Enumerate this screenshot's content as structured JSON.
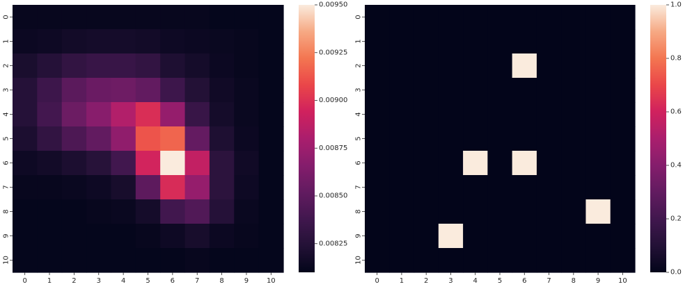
{
  "chart_data": [
    {
      "type": "heatmap",
      "x_ticks": [
        "0",
        "1",
        "2",
        "3",
        "4",
        "5",
        "6",
        "7",
        "8",
        "9",
        "10"
      ],
      "y_ticks": [
        "0",
        "1",
        "2",
        "3",
        "4",
        "5",
        "6",
        "7",
        "8",
        "9",
        "10"
      ],
      "colormap": "rocket",
      "vmin": 0.0081,
      "vmax": 0.0095,
      "colorbar_ticks": [
        "0.00825",
        "0.00850",
        "0.00875",
        "0.00900",
        "0.00925",
        "0.00950"
      ],
      "colorbar_tick_values": [
        0.00825,
        0.0085,
        0.00875,
        0.009,
        0.00925,
        0.0095
      ],
      "values": [
        [
          0.00812,
          0.00812,
          0.00812,
          0.00812,
          0.00812,
          0.00812,
          0.00812,
          0.00812,
          0.00811,
          0.00811,
          0.00811
        ],
        [
          0.00814,
          0.00815,
          0.00817,
          0.00818,
          0.00818,
          0.00817,
          0.00815,
          0.00814,
          0.00813,
          0.00812,
          0.00811
        ],
        [
          0.0082,
          0.00825,
          0.00831,
          0.00834,
          0.00834,
          0.00831,
          0.00822,
          0.00818,
          0.00814,
          0.00812,
          0.00811
        ],
        [
          0.00825,
          0.00836,
          0.00849,
          0.00855,
          0.00857,
          0.00852,
          0.00836,
          0.00824,
          0.00816,
          0.00813,
          0.00811
        ],
        [
          0.00825,
          0.00839,
          0.00856,
          0.00867,
          0.00883,
          0.00899,
          0.00872,
          0.00834,
          0.00818,
          0.00813,
          0.00811
        ],
        [
          0.00821,
          0.00831,
          0.00843,
          0.00852,
          0.0087,
          0.00912,
          0.00917,
          0.00853,
          0.00822,
          0.00814,
          0.00811
        ],
        [
          0.00815,
          0.00817,
          0.00821,
          0.00826,
          0.00838,
          0.00895,
          0.0095,
          0.00889,
          0.00828,
          0.00816,
          0.00811
        ],
        [
          0.00812,
          0.00812,
          0.00813,
          0.00815,
          0.00819,
          0.0085,
          0.00898,
          0.00872,
          0.00828,
          0.00815,
          0.00811
        ],
        [
          0.00811,
          0.00811,
          0.00811,
          0.00812,
          0.00813,
          0.00818,
          0.00838,
          0.00845,
          0.00825,
          0.00813,
          0.00811
        ],
        [
          0.00811,
          0.00811,
          0.00811,
          0.00811,
          0.00811,
          0.00812,
          0.00815,
          0.00819,
          0.00814,
          0.00812,
          0.00811
        ],
        [
          0.00811,
          0.00811,
          0.00811,
          0.00811,
          0.00811,
          0.00811,
          0.00811,
          0.00812,
          0.00811,
          0.00811,
          0.00811
        ]
      ]
    },
    {
      "type": "heatmap",
      "x_ticks": [
        "0",
        "1",
        "2",
        "3",
        "4",
        "5",
        "6",
        "7",
        "8",
        "9",
        "10"
      ],
      "y_ticks": [
        "0",
        "1",
        "2",
        "3",
        "4",
        "5",
        "6",
        "7",
        "8",
        "9",
        "10"
      ],
      "colormap": "rocket",
      "vmin": 0.0,
      "vmax": 1.0,
      "colorbar_ticks": [
        "0.0",
        "0.2",
        "0.4",
        "0.6",
        "0.8",
        "1.0"
      ],
      "colorbar_tick_values": [
        0.0,
        0.2,
        0.4,
        0.6,
        0.8,
        1.0
      ],
      "values": [
        [
          0,
          0,
          0,
          0,
          0,
          0,
          0,
          0,
          0,
          0,
          0
        ],
        [
          0,
          0,
          0,
          0,
          0,
          0,
          0,
          0,
          0,
          0,
          0
        ],
        [
          0,
          0,
          0,
          0,
          0,
          0,
          1,
          0,
          0,
          0,
          0
        ],
        [
          0,
          0,
          0,
          0,
          0,
          0,
          0,
          0,
          0,
          0,
          0
        ],
        [
          0,
          0,
          0,
          0,
          0,
          0,
          0,
          0,
          0,
          0,
          0
        ],
        [
          0,
          0,
          0,
          0,
          0,
          0,
          0,
          0,
          0,
          0,
          0
        ],
        [
          0,
          0,
          0,
          0,
          1,
          0,
          1,
          0,
          0,
          0,
          0
        ],
        [
          0,
          0,
          0,
          0,
          0,
          0,
          0,
          0,
          0,
          0,
          0
        ],
        [
          0,
          0,
          0,
          0,
          0,
          0,
          0,
          0,
          0,
          1,
          0
        ],
        [
          0,
          0,
          0,
          1,
          0,
          0,
          0,
          0,
          0,
          0,
          0
        ],
        [
          0,
          0,
          0,
          0,
          0,
          0,
          0,
          0,
          0,
          0,
          0
        ]
      ]
    }
  ]
}
